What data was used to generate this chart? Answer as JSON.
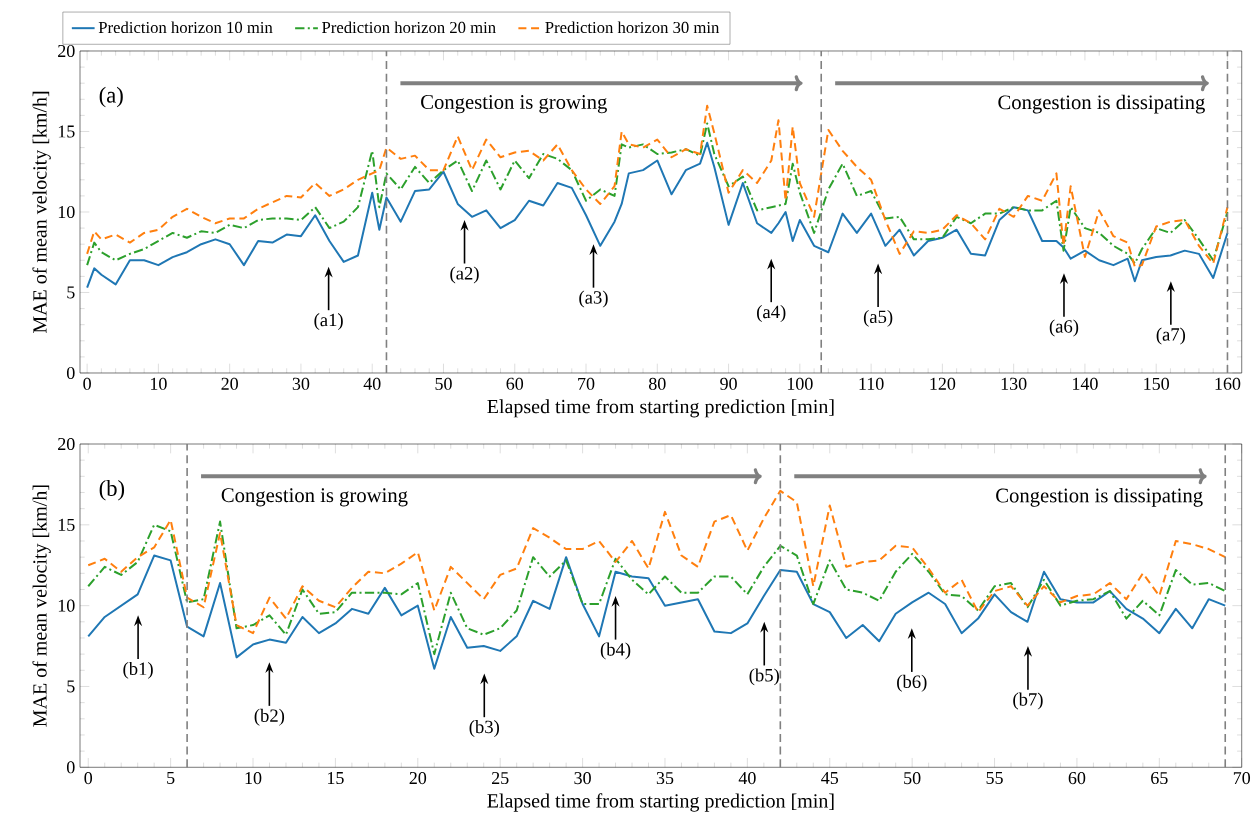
{
  "chart_data": [
    {
      "type": "line",
      "title": "(a)",
      "xlabel": "Elapsed time from starting prediction [min]",
      "ylabel": "MAE of mean velocity [km/h]",
      "xlim": [
        -1,
        162
      ],
      "ylim": [
        0,
        20
      ],
      "xticks": [
        0,
        10,
        20,
        30,
        40,
        50,
        60,
        70,
        80,
        90,
        100,
        110,
        120,
        130,
        140,
        150,
        160
      ],
      "yticks": [
        0,
        5,
        10,
        15,
        20
      ],
      "legend": "top",
      "x": [
        0,
        1,
        2,
        4,
        6,
        8,
        10,
        12,
        14,
        16,
        18,
        20,
        22,
        24,
        26,
        28,
        30,
        32,
        34,
        36,
        38,
        40,
        41,
        42,
        44,
        46,
        48,
        50,
        52,
        54,
        56,
        58,
        60,
        62,
        64,
        66,
        68,
        70,
        72,
        74,
        75,
        76,
        78,
        80,
        82,
        84,
        86,
        87,
        88,
        90,
        92,
        94,
        96,
        97,
        98,
        99,
        100,
        102,
        104,
        106,
        108,
        110,
        112,
        114,
        116,
        118,
        120,
        122,
        124,
        126,
        128,
        130,
        132,
        134,
        136,
        137,
        138,
        140,
        142,
        144,
        146,
        147,
        148,
        150,
        152,
        154,
        156,
        158,
        160
      ],
      "series": [
        {
          "name": "Prediction horizon 10 min",
          "color": "#1f77b4",
          "line_style": "solid",
          "values": [
            5.3,
            6.5,
            6.1,
            5.5,
            7.0,
            7.0,
            6.7,
            7.2,
            7.5,
            8.0,
            8.3,
            8.0,
            6.7,
            8.2,
            8.1,
            8.6,
            8.5,
            9.8,
            8.2,
            6.9,
            7.3,
            11.2,
            8.9,
            10.9,
            9.4,
            11.3,
            11.4,
            12.5,
            10.5,
            9.7,
            10.1,
            9.0,
            9.5,
            10.7,
            10.4,
            11.8,
            11.5,
            9.8,
            7.9,
            9.4,
            10.5,
            12.4,
            12.6,
            13.2,
            11.1,
            12.6,
            13.0,
            14.3,
            12.8,
            9.2,
            11.8,
            9.3,
            8.7,
            9.3,
            10.0,
            8.2,
            9.5,
            7.9,
            7.5,
            9.9,
            8.7,
            9.9,
            7.9,
            8.9,
            7.3,
            8.2,
            8.4,
            8.9,
            7.4,
            7.3,
            9.5,
            10.3,
            10.1,
            8.2,
            8.2,
            7.8,
            7.1,
            7.6,
            7.0,
            6.7,
            7.1,
            5.7,
            7.0,
            7.2,
            7.3,
            7.6,
            7.4,
            5.9,
            8.7
          ]
        },
        {
          "name": "Prediction horizon 20 min",
          "color": "#2ca02c",
          "line_style": "dashdot",
          "values": [
            6.7,
            8.1,
            7.5,
            7.0,
            7.4,
            7.7,
            8.2,
            8.7,
            8.4,
            8.8,
            8.7,
            9.2,
            9.0,
            9.5,
            9.6,
            9.6,
            9.5,
            10.3,
            9.0,
            9.4,
            10.3,
            13.8,
            10.3,
            12.4,
            11.4,
            12.8,
            11.8,
            12.6,
            13.2,
            11.3,
            13.2,
            11.4,
            13.2,
            12.1,
            13.6,
            13.3,
            12.6,
            10.7,
            11.4,
            11.0,
            14.2,
            14.0,
            14.2,
            13.6,
            13.7,
            13.9,
            13.5,
            15.5,
            13.6,
            11.6,
            12.2,
            10.1,
            10.3,
            10.4,
            10.5,
            13.0,
            11.2,
            8.7,
            11.4,
            13.0,
            11.0,
            11.3,
            9.6,
            9.7,
            8.3,
            8.3,
            8.4,
            9.7,
            9.3,
            9.9,
            9.9,
            10.3,
            10.1,
            10.1,
            10.7,
            7.6,
            10.3,
            9.0,
            8.7,
            7.9,
            7.4,
            6.8,
            7.7,
            9.0,
            8.7,
            9.5,
            8.3,
            7.0,
            10.0
          ]
        },
        {
          "name": "Prediction horizon 30 min",
          "color": "#ff7f0e",
          "line_style": "dashed",
          "values": [
            7.4,
            8.8,
            8.3,
            8.6,
            8.1,
            8.7,
            8.9,
            9.7,
            10.2,
            9.7,
            9.3,
            9.6,
            9.6,
            10.2,
            10.6,
            11.0,
            10.9,
            11.8,
            11.0,
            11.4,
            12.0,
            12.4,
            12.6,
            14.0,
            13.3,
            13.5,
            12.6,
            12.6,
            14.7,
            12.6,
            14.5,
            13.4,
            13.7,
            13.8,
            13.2,
            14.2,
            12.6,
            11.4,
            10.5,
            11.6,
            15.0,
            14.2,
            14.0,
            14.5,
            13.4,
            13.9,
            13.6,
            16.6,
            14.9,
            11.2,
            12.6,
            11.8,
            13.2,
            15.7,
            10.7,
            15.3,
            11.8,
            9.7,
            15.1,
            13.8,
            12.8,
            12.0,
            9.5,
            7.4,
            8.8,
            8.7,
            8.9,
            9.8,
            9.3,
            8.3,
            10.2,
            9.7,
            11.0,
            10.7,
            12.4,
            7.9,
            11.6,
            7.2,
            10.1,
            8.5,
            8.1,
            6.6,
            6.7,
            9.1,
            9.4,
            9.5,
            7.9,
            6.8,
            10.3
          ]
        }
      ],
      "ref_lines": [
        {
          "axis": "x",
          "value": 42,
          "color": "#808080",
          "line_style": "dashed"
        },
        {
          "axis": "x",
          "value": 103,
          "color": "#808080",
          "line_style": "dashed"
        },
        {
          "axis": "x",
          "value": 160,
          "color": "#808080",
          "line_style": "dashed"
        }
      ],
      "annotations": [
        "Congestion is growing",
        "Congestion is dissipating",
        "(a1)",
        "(a2)",
        "(a3)",
        "(a4)",
        "(a5)",
        "(a6)",
        "(a7)"
      ]
    },
    {
      "type": "line",
      "title": "(b)",
      "xlabel": "Elapsed time from starting prediction [min]",
      "ylabel": "MAE of mean velocity [km/h]",
      "xlim": [
        -0.5,
        70
      ],
      "ylim": [
        0,
        20
      ],
      "xticks": [
        0,
        5,
        10,
        15,
        20,
        25,
        30,
        35,
        40,
        45,
        50,
        55,
        60,
        65,
        70
      ],
      "yticks": [
        0,
        5,
        10,
        15,
        20
      ],
      "x": [
        0,
        1,
        2,
        3,
        4,
        5,
        6,
        7,
        8,
        9,
        10,
        11,
        12,
        13,
        14,
        15,
        16,
        17,
        18,
        19,
        20,
        21,
        22,
        23,
        24,
        25,
        26,
        27,
        28,
        29,
        30,
        31,
        32,
        33,
        34,
        35,
        36,
        37,
        38,
        39,
        40,
        41,
        42,
        43,
        44,
        45,
        46,
        47,
        48,
        49,
        50,
        51,
        52,
        53,
        54,
        55,
        56,
        57,
        58,
        59,
        60,
        61,
        62,
        63,
        64,
        65,
        66,
        67,
        68,
        69
      ],
      "series": [
        {
          "color": "#1f77b4",
          "line_style": "solid",
          "values": [
            8.1,
            9.3,
            10.0,
            10.7,
            13.1,
            12.8,
            8.7,
            8.1,
            11.4,
            6.8,
            7.6,
            7.9,
            7.7,
            9.3,
            8.3,
            8.9,
            9.8,
            9.5,
            11.1,
            9.4,
            10.0,
            6.1,
            9.3,
            7.4,
            7.5,
            7.2,
            8.1,
            10.3,
            9.8,
            13.0,
            10.1,
            8.1,
            12.1,
            11.8,
            11.7,
            10.0,
            10.2,
            10.4,
            8.4,
            8.3,
            8.9,
            10.6,
            12.2,
            12.1,
            10.1,
            9.6,
            8.0,
            8.8,
            7.8,
            9.5,
            10.2,
            10.8,
            10.1,
            8.3,
            9.2,
            10.7,
            9.6,
            9.0,
            12.1,
            10.4,
            10.2,
            10.2,
            10.9,
            9.8,
            9.2,
            8.3,
            9.8,
            8.6,
            10.4,
            10.0
          ]
        },
        {
          "color": "#2ca02c",
          "line_style": "dashdot",
          "values": [
            11.2,
            12.4,
            11.9,
            12.7,
            15.0,
            14.6,
            10.2,
            10.4,
            15.2,
            8.6,
            8.8,
            9.4,
            8.2,
            11.0,
            9.5,
            9.6,
            10.8,
            10.8,
            10.8,
            10.7,
            11.4,
            7.0,
            10.8,
            8.6,
            8.2,
            8.6,
            9.7,
            13.0,
            11.8,
            12.8,
            10.1,
            10.1,
            12.9,
            11.6,
            10.7,
            11.8,
            10.8,
            10.8,
            11.8,
            11.8,
            10.7,
            12.4,
            13.7,
            13.1,
            10.1,
            12.8,
            11.0,
            10.8,
            10.3,
            12.1,
            13.2,
            12.1,
            10.7,
            10.6,
            9.7,
            11.2,
            11.4,
            9.9,
            11.6,
            10.0,
            10.3,
            10.4,
            10.9,
            9.2,
            10.3,
            9.4,
            12.2,
            11.3,
            11.4,
            10.9
          ]
        },
        {
          "color": "#ff7f0e",
          "line_style": "dashed",
          "values": [
            12.5,
            12.9,
            12.1,
            13.0,
            13.6,
            15.3,
            10.5,
            9.9,
            14.5,
            8.8,
            8.3,
            10.5,
            9.2,
            11.2,
            10.3,
            9.9,
            11.1,
            12.1,
            12.0,
            12.6,
            13.3,
            9.7,
            12.4,
            11.4,
            10.4,
            11.9,
            12.3,
            14.8,
            14.2,
            13.5,
            13.5,
            14.0,
            12.7,
            14.0,
            12.3,
            15.8,
            13.1,
            12.4,
            15.2,
            15.6,
            13.4,
            15.4,
            17.1,
            16.4,
            11.2,
            16.2,
            12.4,
            12.7,
            12.8,
            13.7,
            13.6,
            12.3,
            10.8,
            11.6,
            9.6,
            10.9,
            11.2,
            10.0,
            11.2,
            10.2,
            10.6,
            10.7,
            11.4,
            10.4,
            12.0,
            10.6,
            14.0,
            13.8,
            13.5,
            13.0
          ]
        }
      ],
      "ref_lines": [
        {
          "axis": "x",
          "value": 6,
          "color": "#808080",
          "line_style": "dashed"
        },
        {
          "axis": "x",
          "value": 42,
          "color": "#808080",
          "line_style": "dashed"
        },
        {
          "axis": "x",
          "value": 69,
          "color": "#808080",
          "line_style": "dashed"
        }
      ],
      "annotations": [
        "Congestion is growing",
        "Congestion is dissipating",
        "(b1)",
        "(b2)",
        "(b3)",
        "(b4)",
        "(b5)",
        "(b6)",
        "(b7)"
      ]
    }
  ]
}
